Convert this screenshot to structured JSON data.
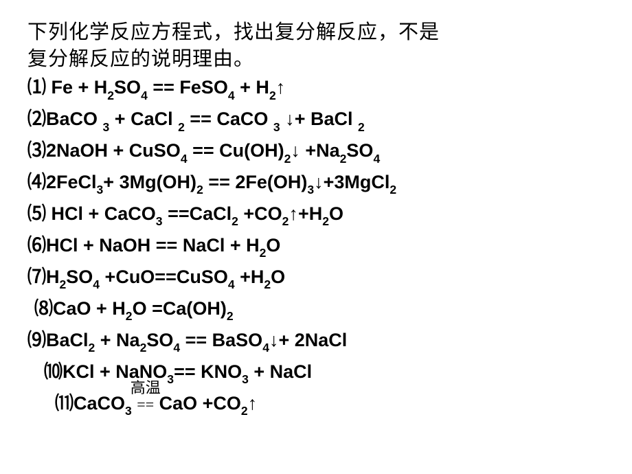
{
  "question_line1": "下列化学反应方程式，找出复分解反应，不是",
  "question_line2": "复分解反应的说明理由。",
  "equations": [
    {
      "num": "⑴",
      "formula": " Fe + H<sub>2</sub>SO<sub>4</sub> == FeSO<sub>4</sub> + H<sub>2</sub>↑",
      "indent": "ind0"
    },
    {
      "num": "⑵",
      "formula": "BaCO <sub>3</sub>  + CaCl <sub>2</sub>  == CaCO <sub>3</sub> ↓+  BaCl <sub>2</sub>",
      "indent": "ind0"
    },
    {
      "num": "⑶",
      "formula": "2NaOH  + CuSO<sub>4</sub>  ==  Cu(OH)<sub>2</sub>↓  +Na<sub>2</sub>SO<sub>4</sub>",
      "indent": "ind0"
    },
    {
      "num": "⑷",
      "formula": "2FeCl<sub>3</sub>+ 3Mg(OH)<sub>2</sub> == 2Fe(OH)<sub>3</sub>↓+3MgCl<sub>2</sub>",
      "indent": "ind0"
    },
    {
      "num": "⑸",
      "formula": " HCl  +  CaCO<sub>3</sub>  ==CaCl<sub>2</sub>  +CO<sub>2</sub>↑+H<sub>2</sub>O",
      "indent": "ind0"
    },
    {
      "num": "⑹",
      "formula": "HCl  +  NaOH  ==  NaCl  + H<sub>2</sub>O",
      "indent": "ind0"
    },
    {
      "num": "⑺",
      "formula": "H<sub>2</sub>SO<sub>4</sub>  +CuO==CuSO<sub>4</sub>  +H<sub>2</sub>O",
      "indent": "ind0"
    },
    {
      "num": "⑻",
      "formula": "CaO + H<sub>2</sub>O =Ca(OH)<sub>2</sub>",
      "indent": "ind1"
    },
    {
      "num": "⑼",
      "formula": "BaCl<sub>2</sub> + Na<sub>2</sub>SO<sub>4</sub> == BaSO<sub>4</sub>↓+ 2NaCl",
      "indent": "ind0"
    },
    {
      "num": "⑽",
      "formula": "KCl  +  NaNO<sub>3</sub>== KNO<sub>3</sub>  +  NaCl",
      "indent": "ind2"
    },
    {
      "num": "⑾",
      "formula": "CaCO<sub>3</sub>  <span class=\"annot\"><span class=\"annot-top\">高温</span>==</span>  CaO  +CO<sub>2</sub>↑",
      "indent": "ind3"
    }
  ],
  "colors": {
    "background": "#ffffff",
    "text": "#000000"
  },
  "typography": {
    "question_fontsize": 29,
    "equation_fontsize": 27,
    "equation_weight": "bold"
  }
}
